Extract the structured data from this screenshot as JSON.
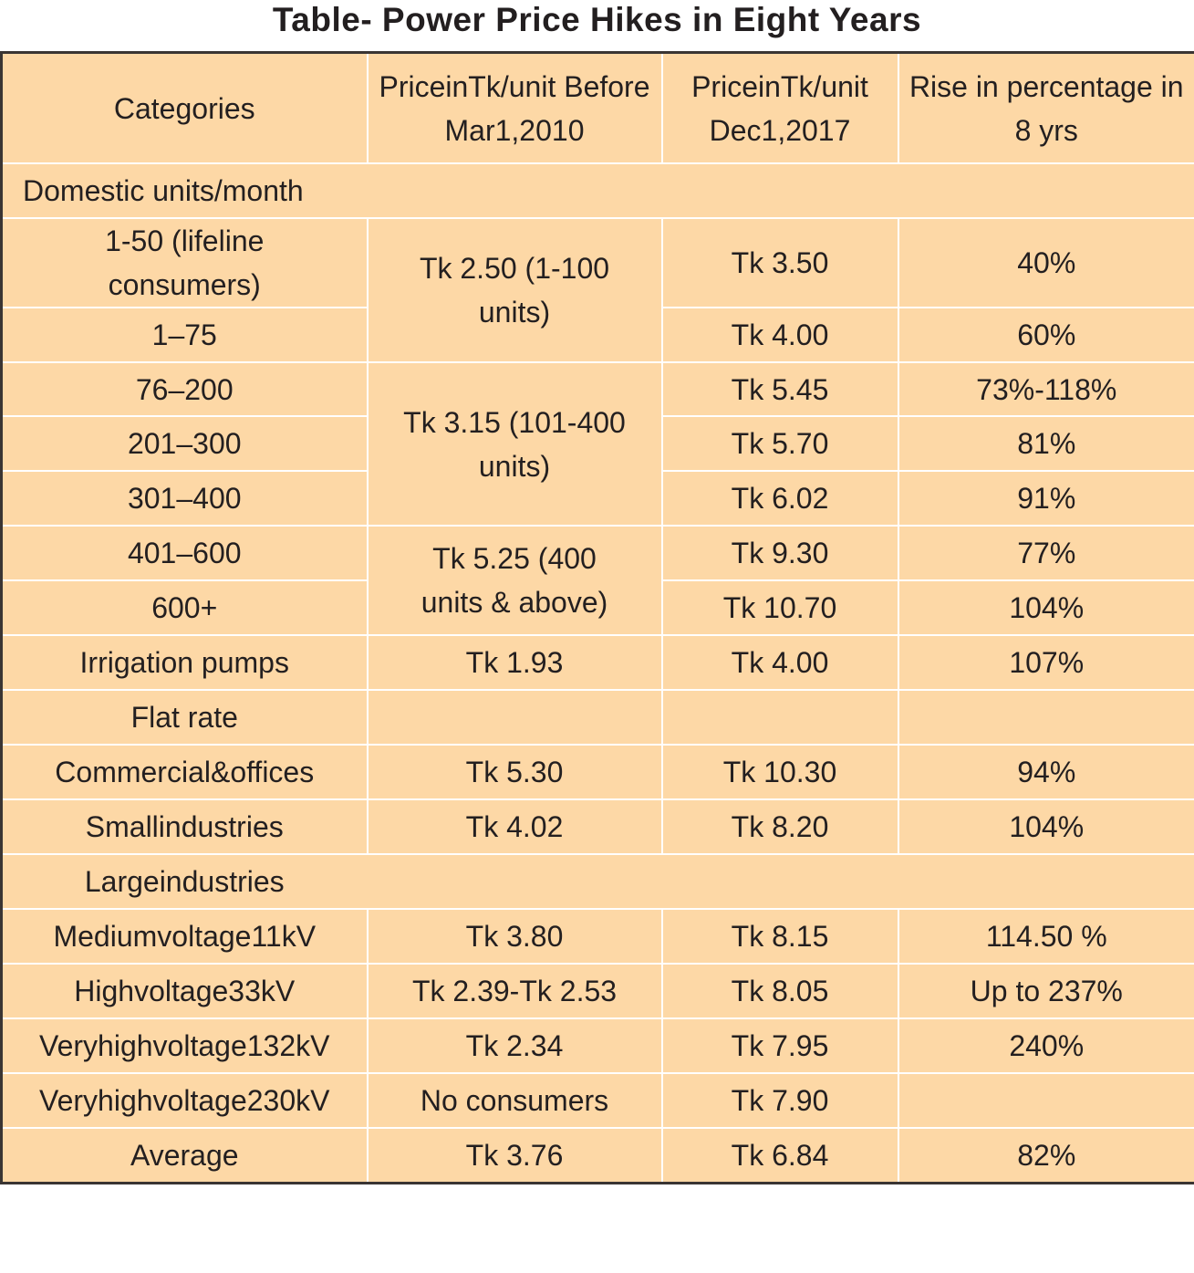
{
  "title": "Table- Power Price Hikes in Eight Years",
  "headers": [
    "Categories",
    "PriceinTk/unit Before Mar1,2010",
    "PriceinTk/unit Dec1,2017",
    "Rise in percentage in 8 yrs"
  ],
  "sections": {
    "domestic": "Domestic units/month",
    "large": "Largeindustries"
  },
  "domestic_rows": [
    {
      "category": "1-50 (lifeline consumers)",
      "dec2017": "Tk 3.50",
      "rise": "40%"
    },
    {
      "category": "1–75",
      "dec2017": "Tk 4.00",
      "rise": "60%"
    },
    {
      "category": "76–200",
      "dec2017": "Tk 5.45",
      "rise": "73%-118%"
    },
    {
      "category": "201–300",
      "dec2017": "Tk 5.70",
      "rise": "81%"
    },
    {
      "category": "301–400",
      "dec2017": "Tk 6.02",
      "rise": "91%"
    },
    {
      "category": "401–600",
      "dec2017": "Tk 9.30",
      "rise": "77%"
    },
    {
      "category": "600+",
      "dec2017": "Tk 10.70",
      "rise": "104%"
    }
  ],
  "domestic_before": [
    "Tk 2.50 (1-100 units)",
    "Tk 3.15 (101-400 units)",
    "Tk 5.25 (400 units & above)"
  ],
  "rows": [
    {
      "category": "Irrigation pumps",
      "before": "Tk 1.93",
      "dec2017": "Tk 4.00",
      "rise": "107%"
    },
    {
      "category": "Flat rate",
      "before": "",
      "dec2017": "",
      "rise": ""
    },
    {
      "category": "Commercial&offices",
      "before": "Tk 5.30",
      "dec2017": "Tk 10.30",
      "rise": "94%"
    },
    {
      "category": "Smallindustries",
      "before": "Tk 4.02",
      "dec2017": "Tk 8.20",
      "rise": "104%"
    }
  ],
  "large_rows": [
    {
      "category": "Mediumvoltage11kV",
      "before": "Tk 3.80",
      "dec2017": "Tk 8.15",
      "rise": "114.50 %"
    },
    {
      "category": "Highvoltage33kV",
      "before": "Tk 2.39-Tk 2.53",
      "dec2017": "Tk 8.05",
      "rise": "Up to 237%"
    },
    {
      "category": "Veryhighvoltage132kV",
      "before": "Tk 2.34",
      "dec2017": "Tk 7.95",
      "rise": "240%"
    },
    {
      "category": "Veryhighvoltage230kV",
      "before": "No consumers",
      "dec2017": "Tk 7.90",
      "rise": ""
    },
    {
      "category": "Average",
      "before": "Tk 3.76",
      "dec2017": "Tk 6.84",
      "rise": "82%"
    }
  ]
}
